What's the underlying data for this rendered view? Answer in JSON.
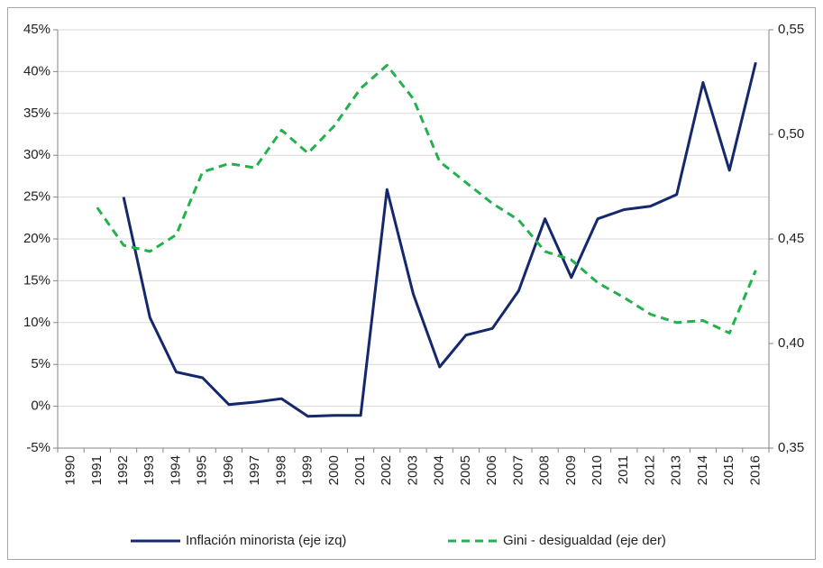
{
  "chart_data": {
    "type": "line",
    "categories": [
      "1990",
      "1991",
      "1992",
      "1993",
      "1994",
      "1995",
      "1996",
      "1997",
      "1998",
      "1999",
      "2000",
      "2001",
      "2002",
      "2003",
      "2004",
      "2005",
      "2006",
      "2007",
      "2008",
      "2009",
      "2010",
      "2011",
      "2012",
      "2013",
      "2014",
      "2015",
      "2016"
    ],
    "series": [
      {
        "name": "Inflación minorista (eje izq)",
        "color": "#14286b",
        "dash": false,
        "values": [
          null,
          null,
          25,
          10.6,
          4.1,
          3.4,
          0.2,
          0.5,
          0.9,
          -1.2,
          -1.1,
          -1.1,
          25.9,
          13.4,
          4.7,
          8.5,
          9.3,
          13.8,
          22.4,
          15.4,
          22.4,
          23.5,
          23.9,
          25.3,
          38.7,
          28.2,
          41.1
        ]
      },
      {
        "name": "Gini - desigualdad (eje der)",
        "color": "#22b14c",
        "dash": true,
        "axis": "y2",
        "values": [
          null,
          0.465,
          0.447,
          0.444,
          0.452,
          0.482,
          0.486,
          0.484,
          0.502,
          0.491,
          0.504,
          0.522,
          0.533,
          0.517,
          0.487,
          0.477,
          0.467,
          0.459,
          0.444,
          0.44,
          0.429,
          0.422,
          0.414,
          0.41,
          0.411,
          0.405,
          0.435
        ]
      }
    ],
    "ylim": [
      -5,
      45
    ],
    "yticks": [
      {
        "value": -5,
        "label": "-5%"
      },
      {
        "value": 0,
        "label": "0%"
      },
      {
        "value": 5,
        "label": "5%"
      },
      {
        "value": 10,
        "label": "10%"
      },
      {
        "value": 15,
        "label": "15%"
      },
      {
        "value": 20,
        "label": "20%"
      },
      {
        "value": 25,
        "label": "25%"
      },
      {
        "value": 30,
        "label": "30%"
      },
      {
        "value": 35,
        "label": "35%"
      },
      {
        "value": 40,
        "label": "40%"
      },
      {
        "value": 45,
        "label": "45%"
      }
    ],
    "y2lim": [
      0.35,
      0.55
    ],
    "y2ticks": [
      {
        "value": 0.35,
        "label": "0,35"
      },
      {
        "value": 0.4,
        "label": "0,40"
      },
      {
        "value": 0.45,
        "label": "0,45"
      },
      {
        "value": 0.5,
        "label": "0,50"
      },
      {
        "value": 0.55,
        "label": "0,55"
      }
    ],
    "grid": true,
    "legend": "bottom"
  }
}
